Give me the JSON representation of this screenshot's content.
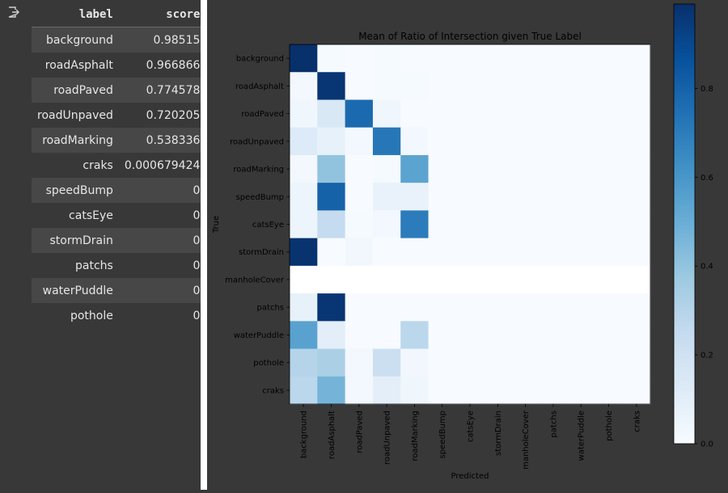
{
  "table": {
    "headers": [
      "label",
      "score"
    ],
    "rows": [
      {
        "label": "background",
        "score": "0.98515"
      },
      {
        "label": "roadAsphalt",
        "score": "0.966866"
      },
      {
        "label": "roadPaved",
        "score": "0.774578"
      },
      {
        "label": "roadUnpaved",
        "score": "0.720205"
      },
      {
        "label": "roadMarking",
        "score": "0.538336"
      },
      {
        "label": "craks",
        "score": "0.000679424"
      },
      {
        "label": "speedBump",
        "score": "0"
      },
      {
        "label": "catsEye",
        "score": "0"
      },
      {
        "label": "stormDrain",
        "score": "0"
      },
      {
        "label": "patchs",
        "score": "0"
      },
      {
        "label": "waterPuddle",
        "score": "0"
      },
      {
        "label": "pothole",
        "score": "0"
      }
    ]
  },
  "icons": {
    "output": "output-cell-icon"
  },
  "colors": {
    "cmap_low": "#f7fbff",
    "cmap_high": "#08306b",
    "page_bg": "#383838"
  },
  "chart_data": {
    "type": "heatmap",
    "title": "Mean of Ratio of Intersection given True Label",
    "xlabel": "Predicted",
    "ylabel": "True",
    "rows": [
      "background",
      "roadAsphalt",
      "roadPaved",
      "roadUnpaved",
      "roadMarking",
      "speedBump",
      "catsEye",
      "stormDrain",
      "manholeCover",
      "patchs",
      "waterPuddle",
      "pothole",
      "craks"
    ],
    "cols": [
      "background",
      "roadAsphalt",
      "roadPaved",
      "roadUnpaved",
      "roadMarking",
      "speedBump",
      "catsEye",
      "stormDrain",
      "manholeCover",
      "patchs",
      "waterPuddle",
      "pothole",
      "craks"
    ],
    "values": [
      [
        0.99,
        0.01,
        0.0,
        0.01,
        0.0,
        0.0,
        0.0,
        0.0,
        0.0,
        0.0,
        0.0,
        0.0,
        0.0
      ],
      [
        0.02,
        0.97,
        0.0,
        0.01,
        0.01,
        0.0,
        0.0,
        0.0,
        0.0,
        0.0,
        0.0,
        0.0,
        0.0
      ],
      [
        0.04,
        0.15,
        0.77,
        0.04,
        0.0,
        0.0,
        0.0,
        0.0,
        0.0,
        0.0,
        0.0,
        0.0,
        0.0
      ],
      [
        0.13,
        0.08,
        0.02,
        0.72,
        0.02,
        0.0,
        0.0,
        0.0,
        0.0,
        0.0,
        0.0,
        0.0,
        0.0
      ],
      [
        0.02,
        0.4,
        0.0,
        0.01,
        0.54,
        0.0,
        0.0,
        0.0,
        0.0,
        0.0,
        0.0,
        0.0,
        0.0
      ],
      [
        0.05,
        0.8,
        0.0,
        0.07,
        0.07,
        0.0,
        0.0,
        0.0,
        0.0,
        0.0,
        0.0,
        0.0,
        0.0
      ],
      [
        0.05,
        0.25,
        0.01,
        0.02,
        0.7,
        0.0,
        0.0,
        0.0,
        0.0,
        0.0,
        0.0,
        0.0,
        0.0
      ],
      [
        0.98,
        0.0,
        0.03,
        0.0,
        0.0,
        0.0,
        0.0,
        0.0,
        0.0,
        0.0,
        0.0,
        0.0,
        0.0
      ],
      [
        null,
        null,
        null,
        null,
        null,
        null,
        null,
        null,
        null,
        null,
        null,
        null,
        null
      ],
      [
        0.08,
        0.97,
        0.0,
        0.0,
        0.0,
        0.0,
        0.0,
        0.0,
        0.0,
        0.0,
        0.0,
        0.0,
        0.0
      ],
      [
        0.55,
        0.1,
        0.0,
        0.0,
        0.28,
        0.0,
        0.0,
        0.0,
        0.0,
        0.0,
        0.0,
        0.0,
        0.0
      ],
      [
        0.3,
        0.33,
        0.02,
        0.22,
        0.03,
        0.0,
        0.0,
        0.0,
        0.0,
        0.0,
        0.0,
        0.0,
        0.0
      ],
      [
        0.28,
        0.47,
        0.02,
        0.1,
        0.04,
        0.0,
        0.0,
        0.0,
        0.0,
        0.0,
        0.0,
        0.0,
        0.0
      ]
    ],
    "colorbar": {
      "range": [
        0,
        0.99
      ],
      "ticks": [
        "0.0",
        "0.2",
        "0.4",
        "0.6",
        "0.8"
      ],
      "tick_values": [
        0,
        0.2,
        0.4,
        0.6,
        0.8
      ]
    },
    "cmap": "Blues",
    "grid": false
  }
}
